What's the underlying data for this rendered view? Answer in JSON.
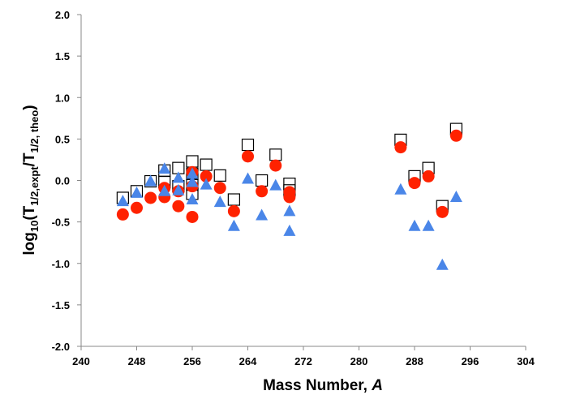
{
  "chart_data": {
    "type": "scatter",
    "title": "",
    "xlabel": "Mass Number, ",
    "xlabel_italic": "A",
    "ylabel_prefix": "log",
    "ylabel_sub1": "10",
    "ylabel_mid": "(T",
    "ylabel_sub2": "1/2,expt",
    "ylabel_mid2": "/T",
    "ylabel_sub3": "1/2, theo",
    "ylabel_suffix": ")",
    "xlim": [
      240,
      304
    ],
    "ylim": [
      -2.0,
      2.0
    ],
    "x_ticks": [
      "240",
      "248",
      "256",
      "264",
      "272",
      "280",
      "288",
      "296",
      "304"
    ],
    "y_ticks": [
      "2.0",
      "1.5",
      "1.0",
      "0.5",
      "0.0",
      "-0.5",
      "-1.0",
      "-1.5",
      "-2.0"
    ],
    "grid": false,
    "legend": "none",
    "series": [
      {
        "marker": "open-square",
        "color": "#000000",
        "points": [
          [
            246,
            -0.21
          ],
          [
            248,
            -0.13
          ],
          [
            250,
            -0.01
          ],
          [
            252,
            0.12
          ],
          [
            252,
            -0.02
          ],
          [
            254,
            0.15
          ],
          [
            254,
            -0.07
          ],
          [
            256,
            0.23
          ],
          [
            256,
            0.08
          ],
          [
            256,
            -0.05
          ],
          [
            256,
            -0.16
          ],
          [
            258,
            0.19
          ],
          [
            260,
            0.06
          ],
          [
            262,
            -0.23
          ],
          [
            264,
            0.43
          ],
          [
            266,
            0.0
          ],
          [
            268,
            0.31
          ],
          [
            270,
            -0.04
          ],
          [
            270,
            -0.12
          ],
          [
            286,
            0.49
          ],
          [
            288,
            0.05
          ],
          [
            290,
            0.15
          ],
          [
            292,
            -0.31
          ],
          [
            294,
            0.62
          ]
        ]
      },
      {
        "marker": "filled-circle",
        "color": "#ff2200",
        "points": [
          [
            246,
            -0.41
          ],
          [
            248,
            -0.33
          ],
          [
            250,
            -0.21
          ],
          [
            252,
            -0.09
          ],
          [
            252,
            -0.2
          ],
          [
            254,
            -0.13
          ],
          [
            254,
            -0.31
          ],
          [
            256,
            0.1
          ],
          [
            256,
            -0.07
          ],
          [
            256,
            -0.44
          ],
          [
            258,
            0.05
          ],
          [
            260,
            -0.09
          ],
          [
            262,
            -0.37
          ],
          [
            264,
            0.29
          ],
          [
            266,
            -0.13
          ],
          [
            268,
            0.18
          ],
          [
            270,
            -0.14
          ],
          [
            270,
            -0.2
          ],
          [
            286,
            0.4
          ],
          [
            288,
            -0.03
          ],
          [
            290,
            0.05
          ],
          [
            292,
            -0.38
          ],
          [
            294,
            0.54
          ]
        ]
      },
      {
        "marker": "filled-triangle",
        "color": "#4a86e8",
        "points": [
          [
            246,
            -0.25
          ],
          [
            248,
            -0.15
          ],
          [
            250,
            -0.01
          ],
          [
            252,
            0.14
          ],
          [
            252,
            -0.13
          ],
          [
            254,
            0.03
          ],
          [
            254,
            -0.12
          ],
          [
            256,
            0.08
          ],
          [
            256,
            -0.02
          ],
          [
            256,
            -0.23
          ],
          [
            258,
            -0.05
          ],
          [
            260,
            -0.26
          ],
          [
            262,
            -0.55
          ],
          [
            264,
            0.02
          ],
          [
            266,
            -0.42
          ],
          [
            268,
            -0.06
          ],
          [
            270,
            -0.37
          ],
          [
            270,
            -0.61
          ],
          [
            286,
            -0.11
          ],
          [
            288,
            -0.55
          ],
          [
            290,
            -0.55
          ],
          [
            292,
            -1.02
          ],
          [
            294,
            -0.2
          ]
        ]
      }
    ]
  }
}
